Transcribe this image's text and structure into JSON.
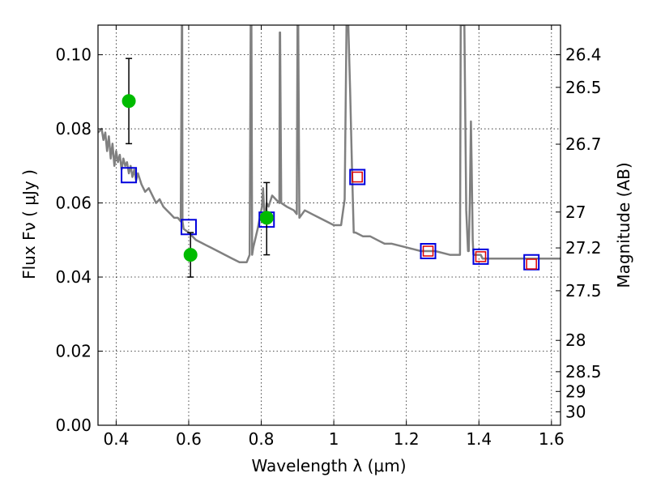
{
  "chart_data": {
    "type": "scatter",
    "xlabel": "Wavelength  λ (μm)",
    "ylabel": "Flux  Fν  ( μJy )",
    "ylabel_right": "Magnitude (AB)",
    "xlim": [
      0.35,
      1.625
    ],
    "ylim": [
      0.0,
      0.108
    ],
    "grid": true,
    "x_ticks": [
      "0.4",
      "0.6",
      "0.8",
      "1",
      "1.2",
      "1.4",
      "1.6"
    ],
    "x_tick_values": [
      0.4,
      0.6,
      0.8,
      1.0,
      1.2,
      1.4,
      1.6
    ],
    "y_ticks": [
      "0.00",
      "0.02",
      "0.04",
      "0.06",
      "0.08",
      "0.10"
    ],
    "y_tick_values": [
      0.0,
      0.02,
      0.04,
      0.06,
      0.08,
      0.1
    ],
    "mag_ticks": [
      "26.4",
      "26.5",
      "26.7",
      "27",
      "27.2",
      "27.5",
      "28",
      "28.5",
      "29",
      "30"
    ],
    "mag_tick_values": [
      26.4,
      26.5,
      26.7,
      27.0,
      27.2,
      27.5,
      28.0,
      28.5,
      29.0,
      30.0
    ],
    "series": [
      {
        "marker": "line",
        "color": "#808080",
        "x": [
          0.35,
          0.36,
          0.365,
          0.37,
          0.375,
          0.38,
          0.385,
          0.39,
          0.395,
          0.4,
          0.405,
          0.41,
          0.415,
          0.42,
          0.425,
          0.43,
          0.435,
          0.44,
          0.445,
          0.45,
          0.455,
          0.46,
          0.47,
          0.48,
          0.49,
          0.5,
          0.51,
          0.52,
          0.53,
          0.54,
          0.55,
          0.56,
          0.57,
          0.578,
          0.581,
          0.582,
          0.583,
          0.586,
          0.6,
          0.62,
          0.64,
          0.66,
          0.68,
          0.7,
          0.72,
          0.74,
          0.76,
          0.768,
          0.771,
          0.773,
          0.775,
          0.778,
          0.79,
          0.8,
          0.802,
          0.805,
          0.808,
          0.812,
          0.815,
          0.82,
          0.83,
          0.84,
          0.85,
          0.851,
          0.852,
          0.855,
          0.87,
          0.89,
          0.898,
          0.9,
          0.902,
          0.905,
          0.92,
          0.94,
          0.96,
          0.98,
          1.0,
          1.02,
          1.03,
          1.035,
          1.04,
          1.045,
          1.05,
          1.055,
          1.06,
          1.08,
          1.1,
          1.12,
          1.14,
          1.16,
          1.2,
          1.24,
          1.28,
          1.32,
          1.348,
          1.35,
          1.36,
          1.365,
          1.37,
          1.372,
          1.375,
          1.378,
          1.38,
          1.383,
          1.385,
          1.39,
          1.395,
          1.4,
          1.405,
          1.41,
          1.42,
          1.44,
          1.46,
          1.5,
          1.54,
          1.56,
          1.6,
          1.625
        ],
        "y": [
          0.079,
          0.08,
          0.077,
          0.079,
          0.074,
          0.078,
          0.072,
          0.076,
          0.07,
          0.074,
          0.071,
          0.073,
          0.069,
          0.072,
          0.07,
          0.071,
          0.068,
          0.07,
          0.067,
          0.069,
          0.066,
          0.068,
          0.065,
          0.063,
          0.064,
          0.062,
          0.06,
          0.061,
          0.059,
          0.058,
          0.057,
          0.056,
          0.056,
          0.055,
          0.108,
          0.108,
          0.055,
          0.053,
          0.052,
          0.05,
          0.049,
          0.048,
          0.047,
          0.046,
          0.045,
          0.044,
          0.044,
          0.046,
          0.108,
          0.108,
          0.046,
          0.048,
          0.053,
          0.058,
          0.059,
          0.064,
          0.058,
          0.057,
          0.06,
          0.059,
          0.062,
          0.061,
          0.06,
          0.106,
          0.106,
          0.06,
          0.059,
          0.058,
          0.057,
          0.108,
          0.108,
          0.056,
          0.058,
          0.057,
          0.056,
          0.055,
          0.054,
          0.054,
          0.061,
          0.108,
          0.108,
          0.09,
          0.07,
          0.052,
          0.052,
          0.051,
          0.051,
          0.05,
          0.049,
          0.049,
          0.048,
          0.047,
          0.047,
          0.046,
          0.046,
          0.108,
          0.108,
          0.058,
          0.047,
          0.047,
          0.06,
          0.082,
          0.07,
          0.05,
          0.046,
          0.046,
          0.046,
          0.046,
          0.046,
          0.045,
          0.045,
          0.045,
          0.045,
          0.045,
          0.045,
          0.045,
          0.045,
          0.045
        ]
      },
      {
        "marker": "green-circle",
        "color": "#00bb00",
        "x": [
          0.435,
          0.605,
          0.815
        ],
        "y": [
          0.0875,
          0.046,
          0.056
        ],
        "err_low": [
          0.076,
          0.04,
          0.046
        ],
        "err_high": [
          0.099,
          0.052,
          0.0655
        ]
      },
      {
        "marker": "blue-open-square",
        "color": "#0000dd",
        "x": [
          0.435,
          0.6,
          0.815,
          1.065,
          1.26,
          1.405,
          1.545
        ],
        "y": [
          0.0675,
          0.0535,
          0.0555,
          0.067,
          0.047,
          0.0455,
          0.044
        ]
      },
      {
        "marker": "red-open-square",
        "color": "#dd0000",
        "x": [
          1.065,
          1.26,
          1.405,
          1.545
        ],
        "y": [
          0.067,
          0.047,
          0.0455,
          0.0435
        ]
      }
    ]
  }
}
